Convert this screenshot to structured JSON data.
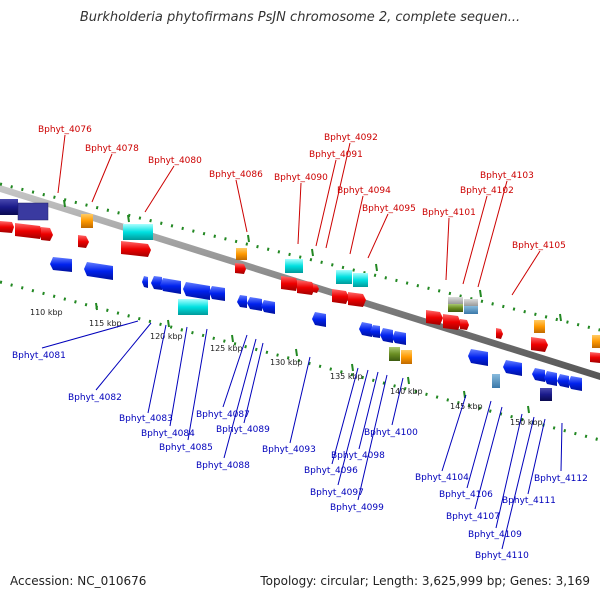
{
  "title": "Burkholderia phytofirmans PsJN chromosome 2, complete sequen...",
  "accession": "Accession: NC_010676",
  "summary": "Topology: circular; Length: 3,625,999 bp; Genes: 3,169",
  "colors": {
    "backbone": "#888888",
    "tick": "#228822",
    "top_label": "#cc0000",
    "bottom_label": "#0000bb",
    "forward_cds": "#ee0000",
    "reverse_cds": "#0022ee",
    "rna": "#ff9900",
    "other": "#00dddd",
    "navy": "#1a1a8a",
    "olive": "#6b8e23"
  },
  "kbp_labels": [
    "110 kbp",
    "115 kbp",
    "120 kbp",
    "125 kbp",
    "130 kbp",
    "135 kbp",
    "140 kbp",
    "145 kbp",
    "150 kbp"
  ],
  "top_genes": [
    "Bphyt_4076",
    "Bphyt_4078",
    "Bphyt_4080",
    "Bphyt_4086",
    "Bphyt_4090",
    "Bphyt_4091",
    "Bphyt_4092",
    "Bphyt_4094",
    "Bphyt_4095",
    "Bphyt_4101",
    "Bphyt_4102",
    "Bphyt_4103",
    "Bphyt_4105"
  ],
  "bottom_genes": [
    "Bphyt_4081",
    "Bphyt_4082",
    "Bphyt_4083",
    "Bphyt_4084",
    "Bphyt_4085",
    "Bphyt_4087",
    "Bphyt_4088",
    "Bphyt_4089",
    "Bphyt_4093",
    "Bphyt_4096",
    "Bphyt_4097",
    "Bphyt_4098",
    "Bphyt_4099",
    "Bphyt_4100",
    "Bphyt_4104",
    "Bphyt_4106",
    "Bphyt_4107",
    "Bphyt_4109",
    "Bphyt_4110",
    "Bphyt_4111",
    "Bphyt_4112"
  ]
}
